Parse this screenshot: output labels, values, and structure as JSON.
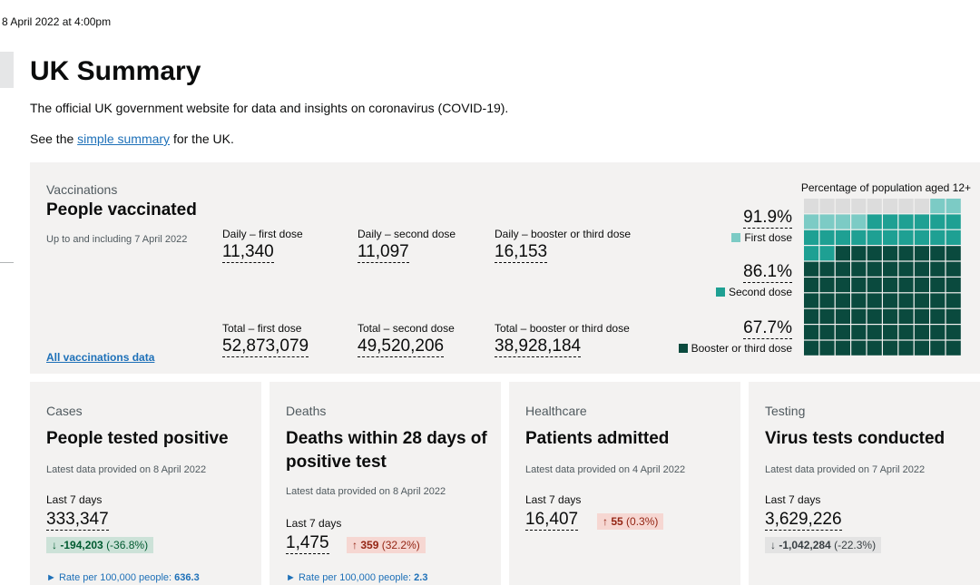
{
  "timestamp": "8 April 2022 at 4:00pm",
  "title": "UK Summary",
  "intro": "The official UK government website for data and insights on coronavirus (COVID-19).",
  "simple": {
    "prefix": "See the ",
    "link": "simple summary",
    "suffix": " for the UK."
  },
  "vaccinations": {
    "category": "Vaccinations",
    "heading": "People vaccinated",
    "updated": "Up to and including 7 April 2022",
    "link": "All vaccinations data",
    "daily": [
      {
        "label": "Daily – first dose",
        "value": "11,340"
      },
      {
        "label": "Daily – second dose",
        "value": "11,097"
      },
      {
        "label": "Daily – booster or third dose",
        "value": "16,153"
      }
    ],
    "totals": [
      {
        "label": "Total – first dose",
        "value": "52,873,079"
      },
      {
        "label": "Total – second dose",
        "value": "49,520,206"
      },
      {
        "label": "Total – booster or third dose",
        "value": "38,928,184"
      }
    ],
    "chart_title": "Percentage of population aged 12+",
    "percentages": [
      {
        "value": "91.9%",
        "legend": "First dose",
        "percent": 91.9
      },
      {
        "value": "86.1%",
        "legend": "Second dose",
        "percent": 86.1
      },
      {
        "value": "67.7%",
        "legend": "Booster or third dose",
        "percent": 67.7
      }
    ],
    "colors": {
      "first": "#7ccbc5",
      "second": "#1ea093",
      "booster": "#0a4a3e",
      "empty": "#dcdcdc"
    }
  },
  "cards": [
    {
      "category": "Cases",
      "heading": "People tested positive",
      "updated": "Latest data provided on 8 April 2022",
      "period": "Last 7 days",
      "value": "333,347",
      "change_arrow": "↓",
      "change": "-194,203",
      "change_pct": "(-36.8%)",
      "rate_label": "Rate per 100,000 people: ",
      "rate": "636.3"
    },
    {
      "category": "Deaths",
      "heading": "Deaths within 28 days of positive test",
      "updated": "Latest data provided on 8 April 2022",
      "period": "Last 7 days",
      "value": "1,475",
      "change_arrow": "↑",
      "change": "359",
      "change_pct": "(32.2%)",
      "rate_label": "Rate per 100,000 people: ",
      "rate": "2.3"
    },
    {
      "category": "Healthcare",
      "heading": "Patients admitted",
      "updated": "Latest data provided on 4 April 2022",
      "period": "Last 7 days",
      "value": "16,407",
      "change_arrow": "↑",
      "change": "55",
      "change_pct": "(0.3%)"
    },
    {
      "category": "Testing",
      "heading": "Virus tests conducted",
      "updated": "Latest data provided on 7 April 2022",
      "period": "Last 7 days",
      "value": "3,629,226",
      "change_arrow": "↓",
      "change": "-1,042,284",
      "change_pct": "(-22.3%)"
    }
  ]
}
